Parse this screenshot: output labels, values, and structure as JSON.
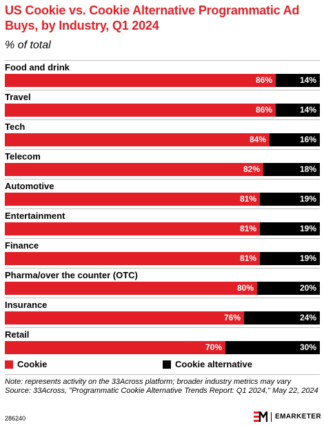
{
  "header": {
    "title": "US Cookie vs. Cookie Alternative Programmatic Ad Buys, by Industry, Q1 2024",
    "subtitle": "% of total"
  },
  "colors": {
    "cookie": "#e21f26",
    "alternative": "#000000",
    "title": "#e21f26"
  },
  "chart_data": {
    "type": "bar",
    "orientation": "horizontal",
    "stacked": true,
    "title": "US Cookie vs. Cookie Alternative Programmatic Ad Buys, by Industry, Q1 2024",
    "subtitle": "% of total",
    "categories": [
      "Food and drink",
      "Travel",
      "Tech",
      "Telecom",
      "Automotive",
      "Entertainment",
      "Finance",
      "Pharma/over the counter (OTC)",
      "Insurance",
      "Retail"
    ],
    "series": [
      {
        "name": "Cookie",
        "values": [
          86,
          86,
          84,
          82,
          81,
          81,
          81,
          80,
          76,
          70
        ],
        "labels": [
          "86%",
          "86%",
          "84%",
          "82%",
          "81%",
          "81%",
          "81%",
          "80%",
          "76%",
          "70%"
        ]
      },
      {
        "name": "Cookie alternative",
        "values": [
          14,
          14,
          16,
          18,
          19,
          19,
          19,
          20,
          24,
          30
        ],
        "labels": [
          "14%",
          "14%",
          "16%",
          "18%",
          "19%",
          "19%",
          "19%",
          "20%",
          "24%",
          "30%"
        ]
      }
    ],
    "xlim": [
      0,
      100
    ],
    "legend_position": "bottom",
    "grid": false
  },
  "footer": {
    "note": "Note: represents activity on the 33Across platform; broader industry metrics may vary",
    "source": "Source: 33Across, \"Programmatic Cookie Alternative Trends Report: Q1 2024,\" May 22, 2024",
    "chart_id": "286240",
    "brand": "EMARKETER",
    "logo_icon": "em-logo-icon"
  }
}
